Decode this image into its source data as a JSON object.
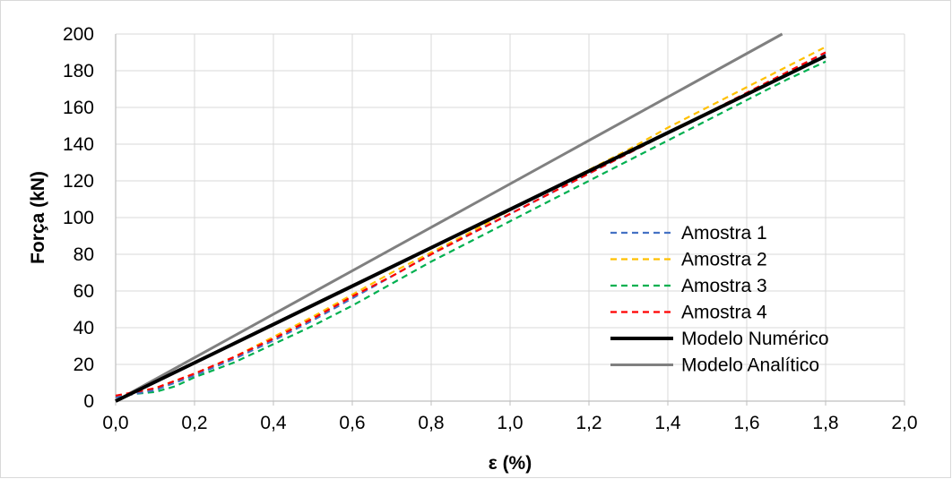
{
  "chart_data": {
    "type": "line",
    "title": "",
    "xlabel": "ε (%)",
    "ylabel": "Força (kN)",
    "xlim": [
      0,
      2
    ],
    "ylim": [
      0,
      200
    ],
    "x_ticks": [
      "0,0",
      "0,2",
      "0,4",
      "0,6",
      "0,8",
      "1,0",
      "1,2",
      "1,4",
      "1,6",
      "1,8",
      "2,0"
    ],
    "y_ticks": [
      "0",
      "20",
      "40",
      "60",
      "80",
      "100",
      "120",
      "140",
      "160",
      "180",
      "200"
    ],
    "grid": "horizontal and vertical",
    "legend_position": "right-center",
    "series": [
      {
        "name": "Amostra 1",
        "color": "#4472c4",
        "style": "dashed",
        "x": [
          0.0,
          0.1,
          0.2,
          0.3,
          0.4,
          0.5,
          0.6,
          0.7,
          0.8,
          0.9,
          1.0,
          1.1,
          1.2,
          1.3,
          1.4,
          1.5,
          1.6,
          1.7,
          1.8
        ],
        "y": [
          2,
          6,
          14,
          23,
          33,
          44,
          56,
          68,
          80,
          91,
          102,
          113,
          124,
          135,
          146,
          157,
          167,
          178,
          189
        ]
      },
      {
        "name": "Amostra 2",
        "color": "#ffc000",
        "style": "dashed",
        "x": [
          0.0,
          0.1,
          0.2,
          0.3,
          0.4,
          0.5,
          0.6,
          0.7,
          0.8,
          0.9,
          1.0,
          1.1,
          1.2,
          1.3,
          1.4,
          1.5,
          1.6,
          1.7,
          1.8
        ],
        "y": [
          2,
          7,
          15,
          24,
          35,
          46,
          58,
          70,
          81,
          92,
          104,
          115,
          126,
          137,
          149,
          160,
          171,
          182,
          193
        ]
      },
      {
        "name": "Amostra 3",
        "color": "#00b050",
        "style": "dashed",
        "x": [
          0.0,
          0.05,
          0.1,
          0.15,
          0.2,
          0.3,
          0.4,
          0.5,
          0.6,
          0.7,
          0.8,
          0.9,
          1.0,
          1.1,
          1.2,
          1.3,
          1.4,
          1.5,
          1.6,
          1.7,
          1.8
        ],
        "y": [
          3,
          4,
          5,
          8,
          13,
          21,
          31,
          41,
          52,
          64,
          76,
          87,
          98,
          109,
          120,
          131,
          142,
          153,
          164,
          175,
          185
        ]
      },
      {
        "name": "Amostra 4",
        "color": "#ff0000",
        "style": "dashed",
        "x": [
          0.0,
          0.1,
          0.2,
          0.3,
          0.4,
          0.5,
          0.6,
          0.7,
          0.8,
          0.9,
          1.0,
          1.1,
          1.2,
          1.3,
          1.4,
          1.5,
          1.6,
          1.7,
          1.8
        ],
        "y": [
          3,
          7,
          15,
          24,
          34,
          45,
          57,
          68,
          80,
          91,
          102,
          113,
          124,
          135,
          146,
          157,
          168,
          179,
          190
        ]
      },
      {
        "name": "Modelo Numérico",
        "color": "#000000",
        "style": "solid-thick",
        "x": [
          0.0,
          1.8
        ],
        "y": [
          0,
          188
        ]
      },
      {
        "name": "Modelo Analítico",
        "color": "#808080",
        "style": "solid",
        "x": [
          0.0,
          1.69
        ],
        "y": [
          0,
          200
        ]
      }
    ]
  }
}
